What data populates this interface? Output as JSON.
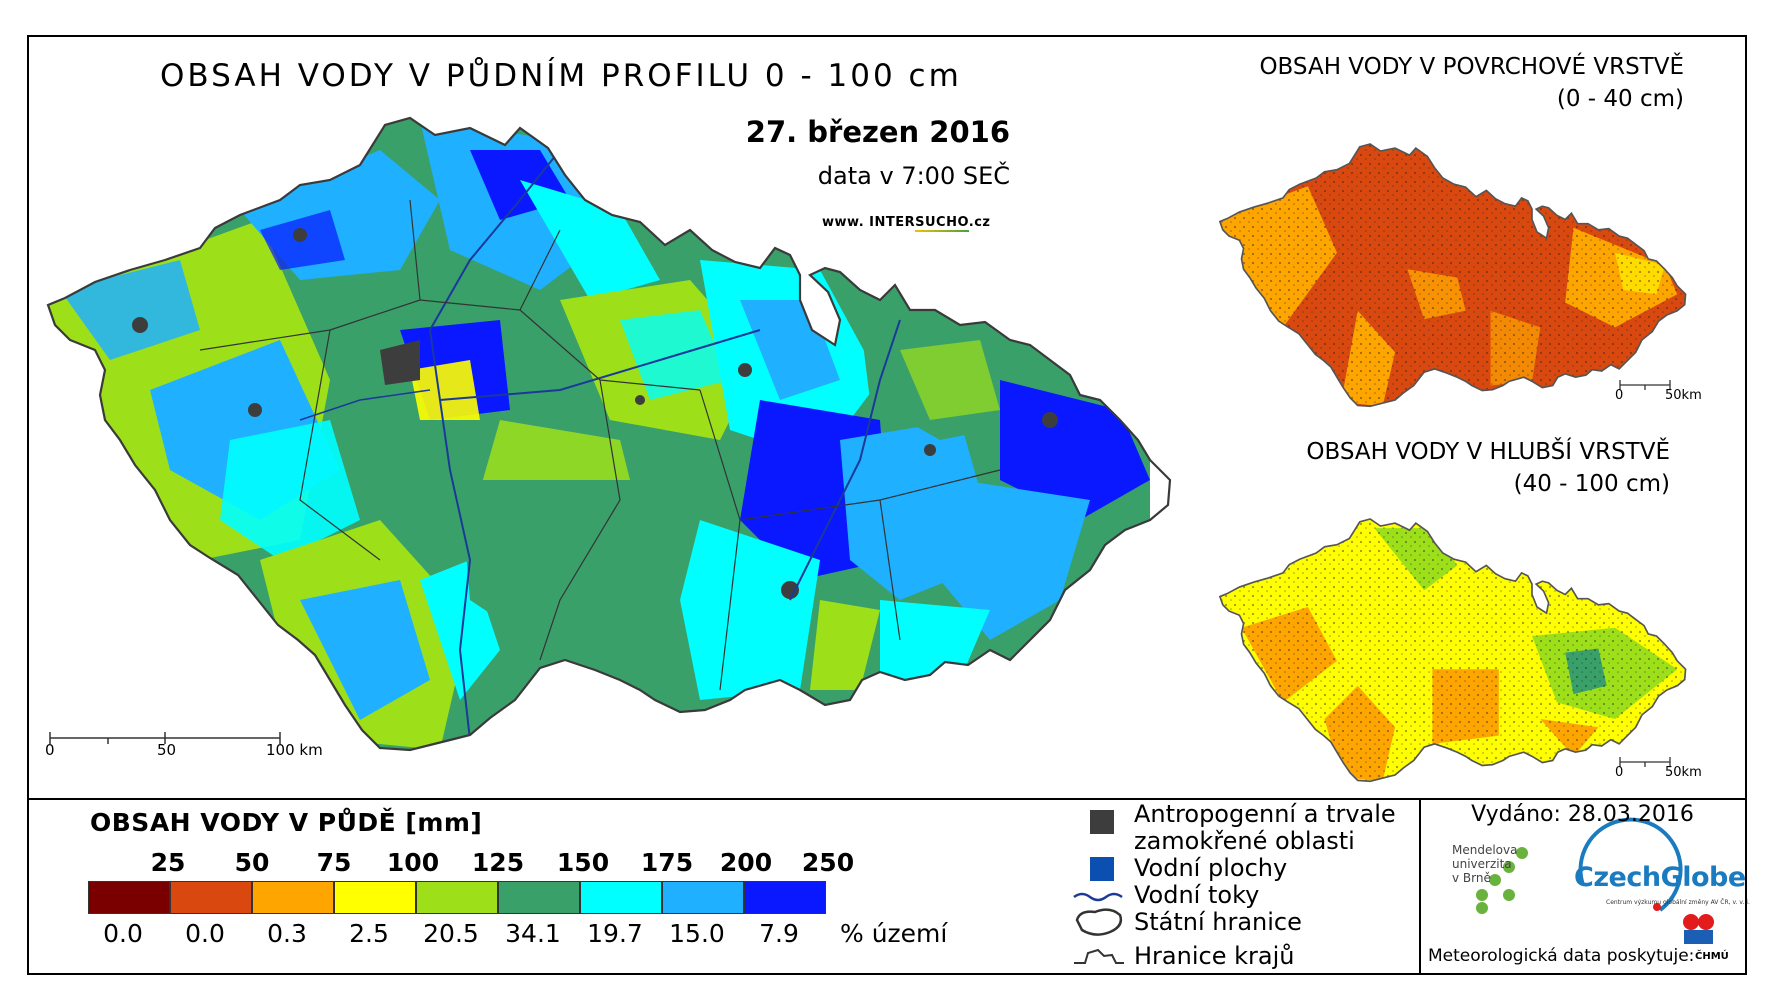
{
  "main_map": {
    "title": "OBSAH VODY V PŮDNÍM PROFILU 0 - 100 cm",
    "date": "27. březen 2016",
    "time": "data v 7:00 SEČ",
    "website": {
      "prefix": "www. INTER",
      "highlight": "SUCHO",
      "suffix": ".cz"
    },
    "scale": {
      "labels": [
        "0",
        "50",
        "100 km"
      ]
    }
  },
  "surface_map": {
    "title": "OBSAH VODY V POVRCHOVÉ VRSTVĚ",
    "subtitle": "(0 - 40 cm)",
    "scale": {
      "labels": [
        "0",
        "50km"
      ]
    }
  },
  "deep_map": {
    "title": "OBSAH VODY V HLUBŠÍ VRSTVĚ",
    "subtitle": "(40 - 100 cm)",
    "scale": {
      "labels": [
        "0",
        "50km"
      ]
    }
  },
  "legend": {
    "title": "OBSAH VODY V PŮDĚ [mm]",
    "thresholds": [
      "25",
      "50",
      "75",
      "100",
      "125",
      "150",
      "175",
      "200",
      "250"
    ],
    "colors": [
      "#7a0000",
      "#d9480f",
      "#ffa500",
      "#ffff00",
      "#9de01a",
      "#3aa06a",
      "#00ffff",
      "#1fb0ff",
      "#0a18ff"
    ],
    "percentages": [
      "0.0",
      "0.0",
      "0.3",
      "2.5",
      "20.5",
      "34.1",
      "19.7",
      "15.0",
      "7.9"
    ],
    "percent_label": "% území"
  },
  "symbols": {
    "anthropogenic": "Antropogenní a trvale zamokřené oblasti",
    "water_bodies": "Vodní plochy",
    "rivers": "Vodní toky",
    "state_border": "Státní hranice",
    "regional_border": "Hranice krajů",
    "anthropogenic_color": "#3d3d3d",
    "water_color": "#0b4fb0",
    "river_color": "#1a3a9a"
  },
  "issued": {
    "label": "Vydáno: 28.03.2016",
    "mendel": [
      "Mendelova",
      "univerzita",
      "v Brně"
    ],
    "czechglobe": "CzechGlobe",
    "czechglobe_sub": "Centrum výzkumu globální změny AV ČR, v. v. i.",
    "meteo": "Meteorologická data poskytuje:",
    "chmu": "ČHMÚ"
  }
}
